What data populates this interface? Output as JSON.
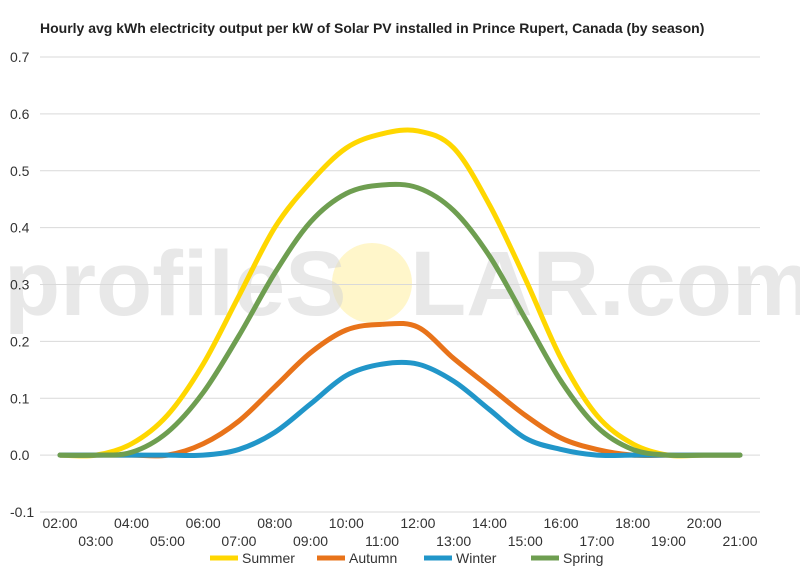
{
  "chart_data": {
    "type": "line",
    "title": "Hourly avg kWh electricity output per kW of Solar PV installed in Prince Rupert, Canada (by season)",
    "xlabel": "",
    "ylabel": "",
    "x": [
      "02:00",
      "03:00",
      "04:00",
      "05:00",
      "06:00",
      "07:00",
      "08:00",
      "09:00",
      "10:00",
      "11:00",
      "12:00",
      "13:00",
      "14:00",
      "15:00",
      "16:00",
      "17:00",
      "18:00",
      "19:00",
      "20:00",
      "21:00"
    ],
    "x_ticks_upper": [
      "02:00",
      "04:00",
      "06:00",
      "08:00",
      "10:00",
      "12:00",
      "14:00",
      "16:00",
      "18:00",
      "20:00"
    ],
    "x_ticks_lower": [
      "03:00",
      "05:00",
      "07:00",
      "09:00",
      "11:00",
      "13:00",
      "15:00",
      "17:00",
      "19:00",
      "21:00"
    ],
    "ylim": [
      -0.1,
      0.7
    ],
    "y_ticks": [
      "-0.1",
      "0.0",
      "0.1",
      "0.2",
      "0.3",
      "0.4",
      "0.5",
      "0.6",
      "0.7"
    ],
    "y_tick_values": [
      -0.1,
      0.0,
      0.1,
      0.2,
      0.3,
      0.4,
      0.5,
      0.6,
      0.7
    ],
    "grid": "horizontal",
    "legend_position": "bottom",
    "series": [
      {
        "name": "Summer",
        "color": "#FFD700",
        "values": [
          0.0,
          0.0,
          0.02,
          0.07,
          0.16,
          0.28,
          0.4,
          0.48,
          0.54,
          0.565,
          0.57,
          0.54,
          0.44,
          0.31,
          0.17,
          0.07,
          0.02,
          0.0,
          0.0,
          0.0
        ]
      },
      {
        "name": "Autumn",
        "color": "#E8731A",
        "values": [
          0.0,
          0.0,
          0.0,
          0.0,
          0.02,
          0.06,
          0.12,
          0.18,
          0.22,
          0.23,
          0.225,
          0.17,
          0.12,
          0.07,
          0.03,
          0.01,
          0.0,
          0.0,
          0.0,
          0.0
        ]
      },
      {
        "name": "Winter",
        "color": "#2196C9",
        "values": [
          0.0,
          0.0,
          0.0,
          0.0,
          0.0,
          0.01,
          0.04,
          0.09,
          0.14,
          0.16,
          0.16,
          0.13,
          0.08,
          0.03,
          0.01,
          0.0,
          0.0,
          0.0,
          0.0,
          0.0
        ]
      },
      {
        "name": "Spring",
        "color": "#6E9E50",
        "values": [
          0.0,
          0.0,
          0.005,
          0.04,
          0.11,
          0.21,
          0.32,
          0.41,
          0.46,
          0.475,
          0.47,
          0.43,
          0.35,
          0.24,
          0.13,
          0.05,
          0.01,
          0.0,
          0.0,
          0.0
        ]
      }
    ]
  },
  "watermark": {
    "left": "profileS",
    "right": "LAR.com",
    "sun_color": "#FFF2B3"
  }
}
